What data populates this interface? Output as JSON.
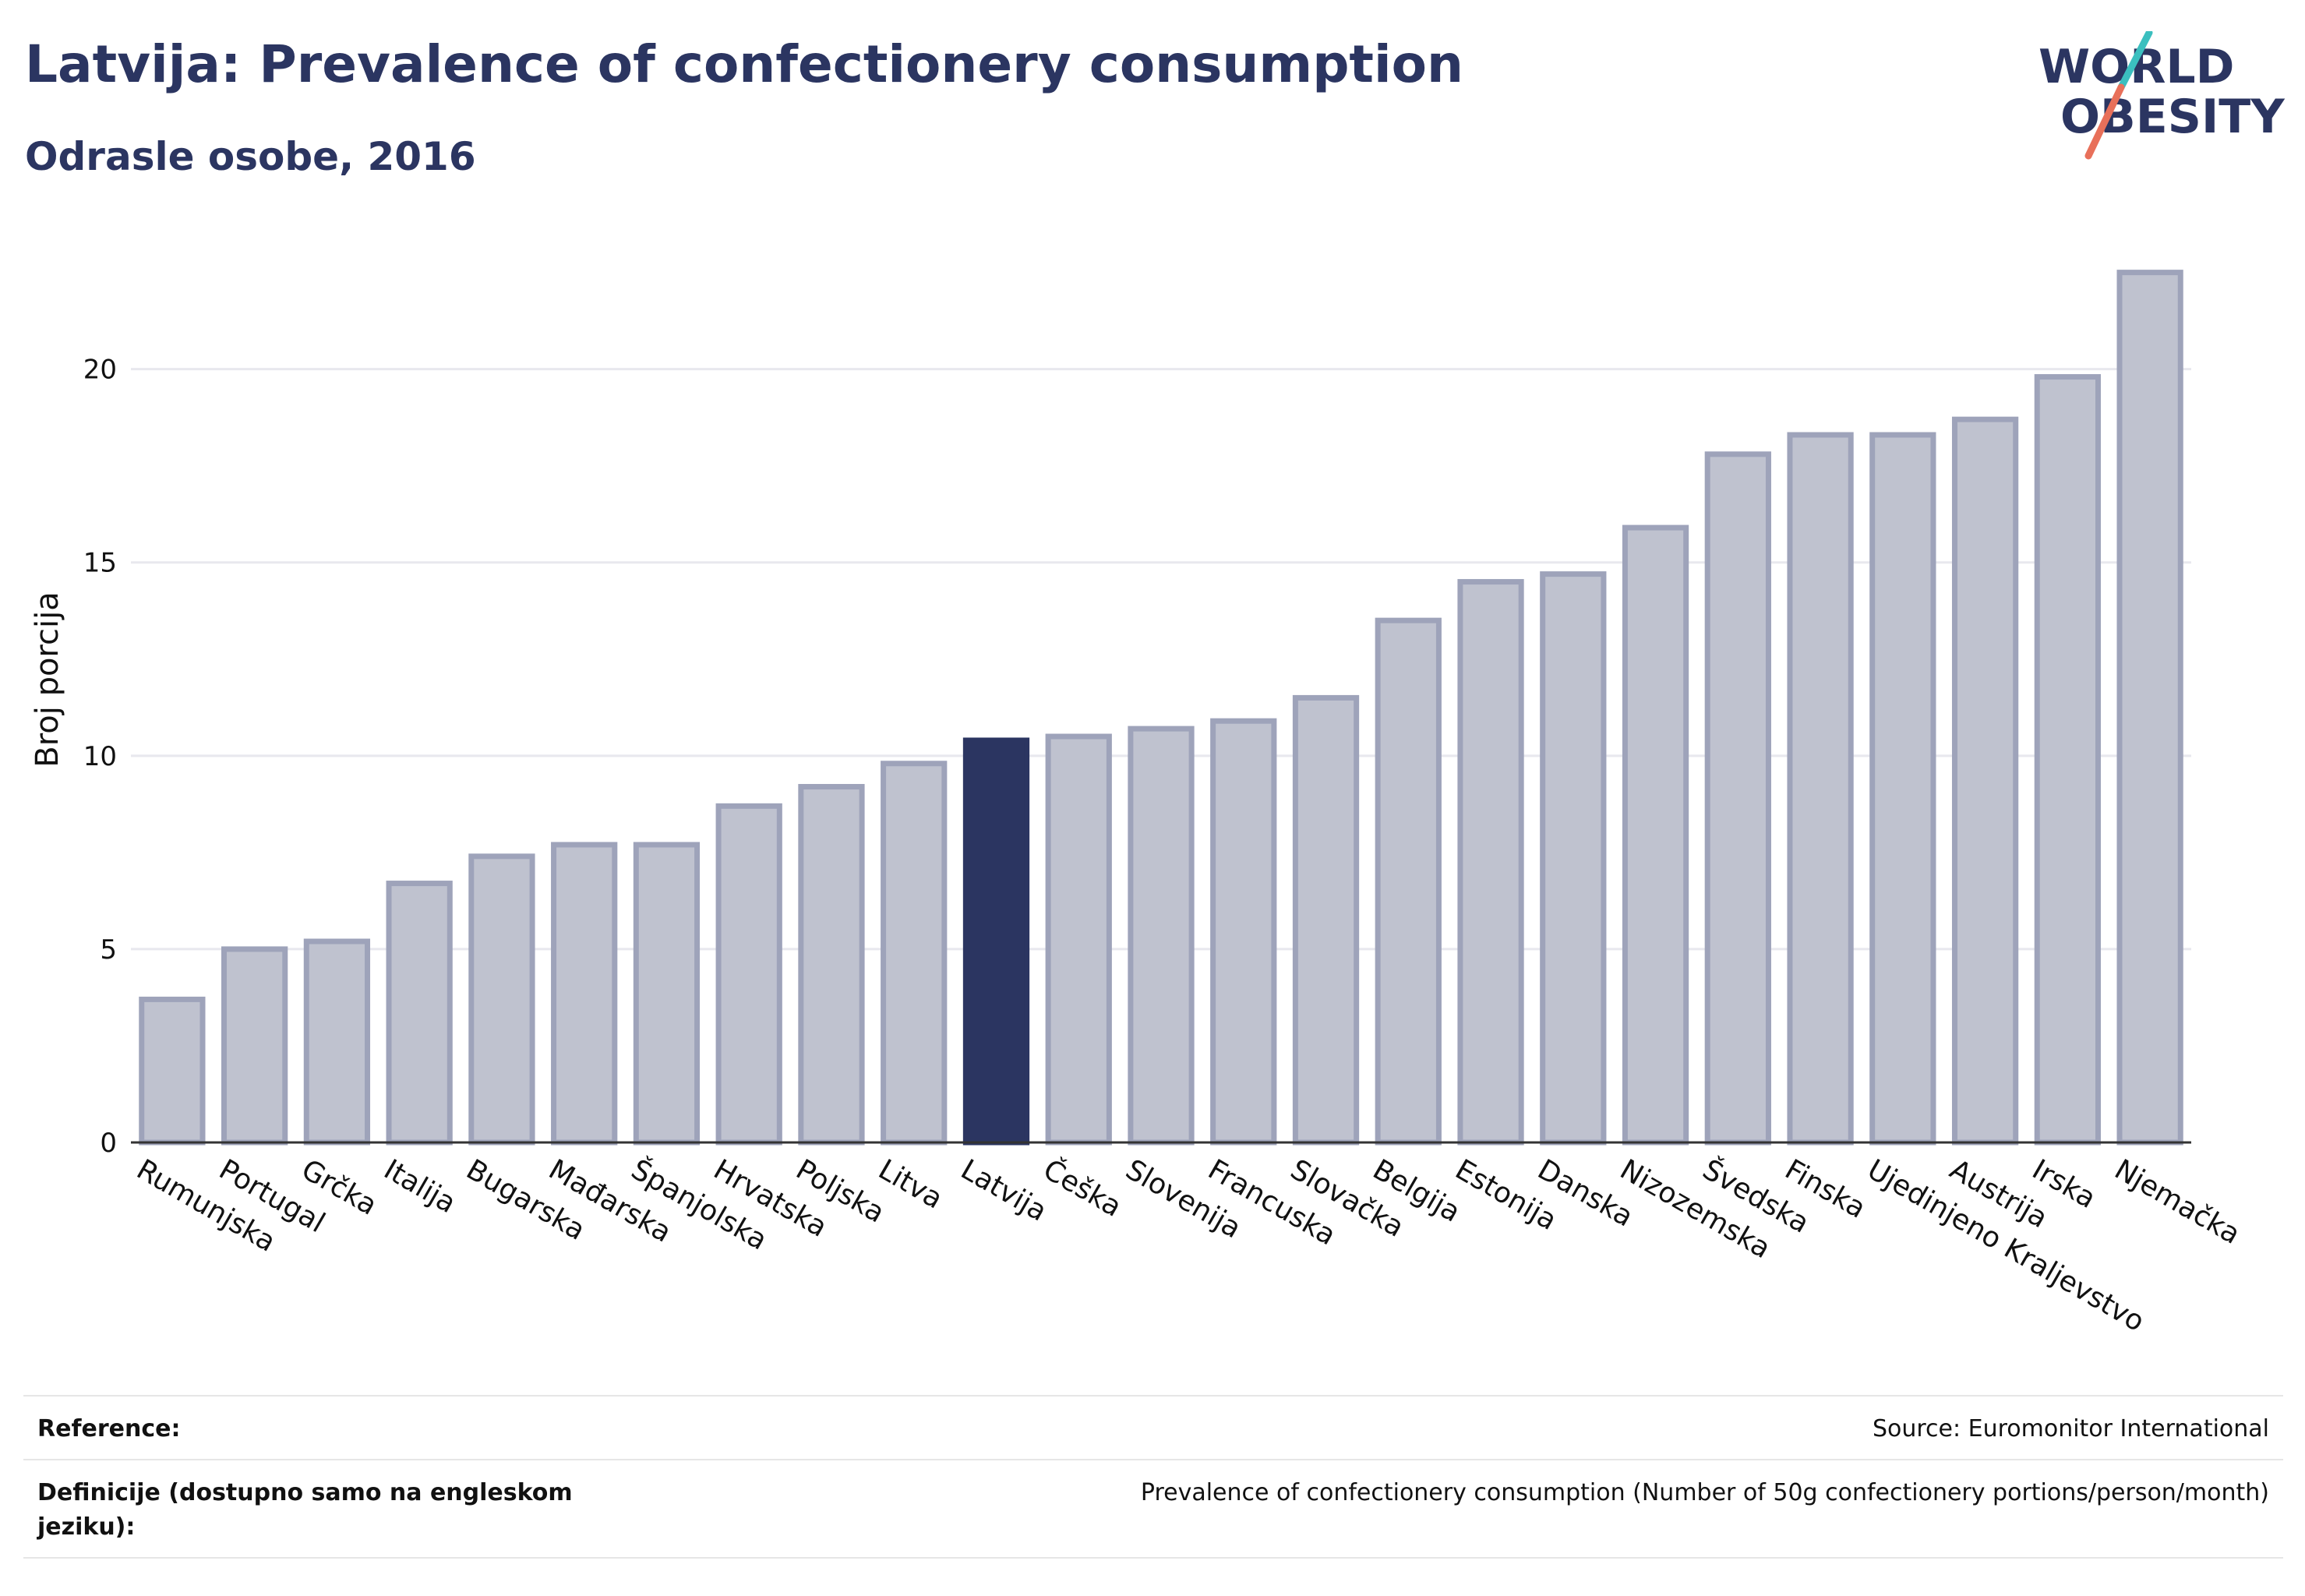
{
  "header": {
    "title": "Latvija: Prevalence of confectionery consumption",
    "subtitle": "Odrasle osobe, 2016"
  },
  "logo": {
    "line1": "WORLD",
    "line2": "OBESITY",
    "colors": {
      "text": "#2b3561",
      "teal": "#3bbfbf",
      "coral": "#e8705a"
    }
  },
  "chart_data": {
    "type": "bar",
    "title": "",
    "ylabel": "Broj porcija",
    "xlabel": "",
    "ylim": [
      0,
      23.5
    ],
    "yticks": [
      0,
      5,
      10,
      15,
      20
    ],
    "grid": true,
    "highlight": "Latvija",
    "colors": {
      "bar": "#bfc2cf",
      "bar_stroke": "#9ea3ba",
      "highlight": "#2b3561",
      "grid": "#e8e8ee"
    },
    "categories": [
      "Rumunjska",
      "Portugal",
      "Grčka",
      "Italija",
      "Bugarska",
      "Mađarska",
      "Španjolska",
      "Hrvatska",
      "Poljska",
      "Litva",
      "Latvija",
      "Češka",
      "Slovenija",
      "Francuska",
      "Slovačka",
      "Belgija",
      "Estonija",
      "Danska",
      "Nizozemska",
      "Švedska",
      "Finska",
      "Ujedinjeno Kraljevstvo",
      "Austrija",
      "Irska",
      "Njemačka"
    ],
    "values": [
      3.7,
      5.0,
      5.2,
      6.7,
      7.4,
      7.7,
      7.7,
      8.7,
      9.2,
      9.8,
      10.4,
      10.5,
      10.7,
      10.9,
      11.5,
      13.5,
      14.5,
      14.7,
      15.9,
      17.8,
      18.3,
      18.3,
      18.7,
      19.8,
      22.5
    ]
  },
  "footer": {
    "reference_label": "Reference:",
    "reference_value": "Source: Euromonitor International",
    "definition_label": "Definicije (dostupno samo na engleskom jeziku):",
    "definition_value": "Prevalence of confectionery consumption (Number of 50g confectionery portions/person/month)"
  }
}
